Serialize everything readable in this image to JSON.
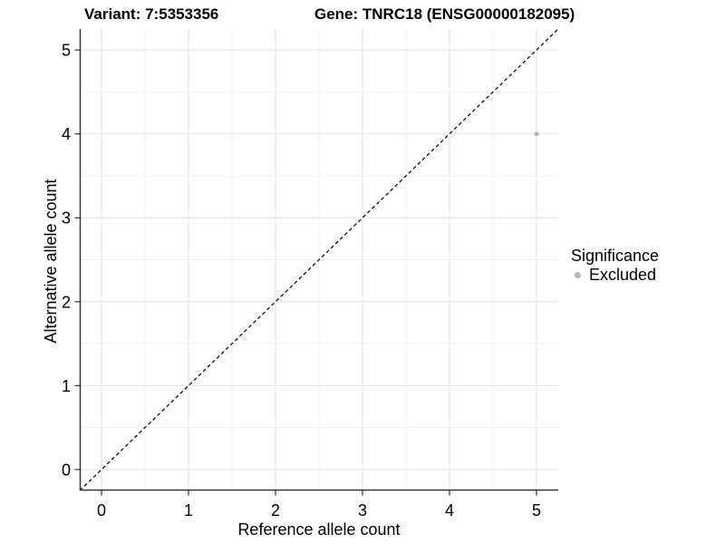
{
  "titles": {
    "variant": "Variant: 7:5353356",
    "gene": "Gene: TNRC18 (ENSG00000182095)"
  },
  "chart_data": {
    "type": "scatter",
    "title": "Variant: 7:5353356    Gene: TNRC18 (ENSG00000182095)",
    "xlabel": "Reference allele count",
    "ylabel": "Alternative allele count",
    "xlim": [
      -0.25,
      5.25
    ],
    "ylim": [
      -0.25,
      5.25
    ],
    "xticks": [
      0,
      1,
      2,
      3,
      4,
      5
    ],
    "yticks": [
      0,
      1,
      2,
      3,
      4,
      5
    ],
    "minor_xticks": [
      0.5,
      1.5,
      2.5,
      3.5,
      4.5
    ],
    "minor_yticks": [
      0.5,
      1.5,
      2.5,
      3.5,
      4.5
    ],
    "grid": "major+minor",
    "series": [
      {
        "name": "Excluded",
        "points": [
          {
            "x": 5,
            "y": 4
          }
        ]
      }
    ],
    "reference_line": {
      "type": "identity-diagonal",
      "style": "dashed",
      "from": [
        -0.25,
        -0.25
      ],
      "to": [
        5.25,
        5.25
      ]
    },
    "legend": {
      "title": "Significance",
      "position": "right",
      "items": [
        {
          "label": "Excluded",
          "color": "#b4b4b4"
        }
      ]
    },
    "colors": {
      "point": "#b4b4b4",
      "grid_major": "#e4e4e4",
      "grid_minor": "#f2f2f2",
      "axis_line": "#333333",
      "tick_mark": "#333333",
      "reference_line": "#000000",
      "text": "#000000"
    }
  }
}
